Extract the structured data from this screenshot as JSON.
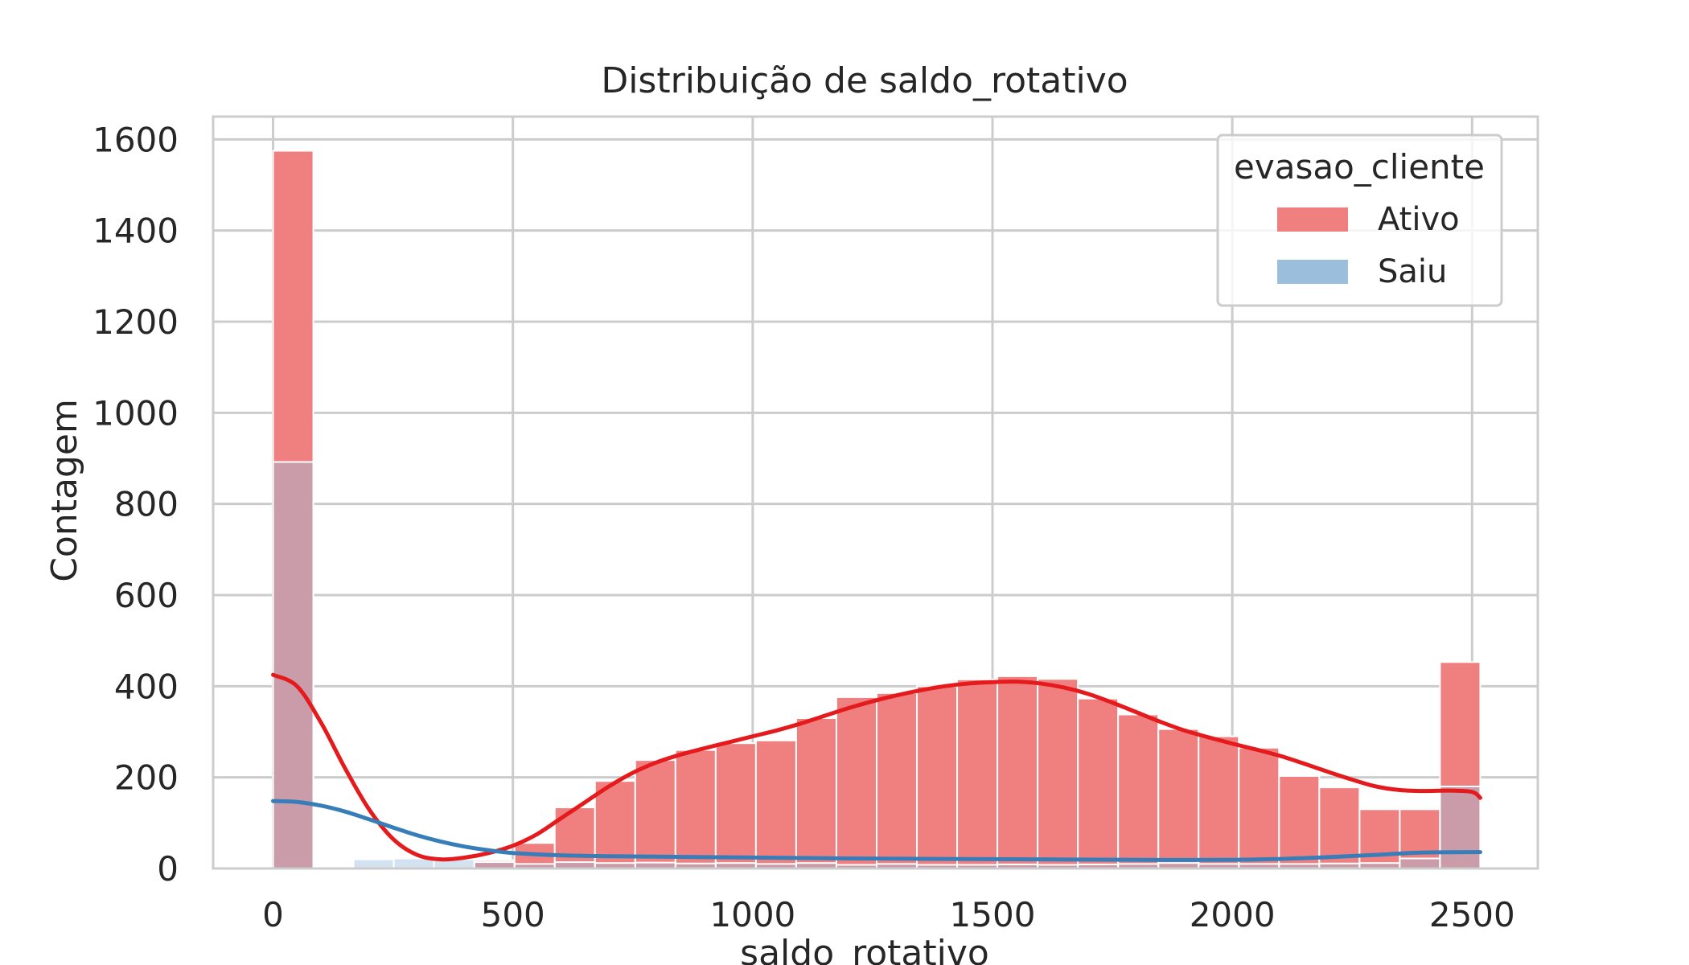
{
  "chart_data": {
    "type": "bar",
    "title": "Distribuição de saldo_rotativo",
    "xlabel": "saldo_rotativo",
    "ylabel": "Contagem",
    "xlim": [
      -125,
      2637
    ],
    "ylim": [
      0,
      1650
    ],
    "xticks": [
      0,
      500,
      1000,
      1500,
      2000,
      2500
    ],
    "yticks": [
      0,
      200,
      400,
      600,
      800,
      1000,
      1200,
      1400,
      1600
    ],
    "grid": true,
    "legend": {
      "title": "evasao_cliente",
      "position": "upper right"
    },
    "bin_edges": [
      0,
      83.9,
      167.8,
      251.7,
      335.6,
      419.5,
      503.4,
      587.3,
      671.2,
      755.1,
      839,
      922.9,
      1006.8,
      1090.7,
      1174.6,
      1258.5,
      1342.4,
      1426.3,
      1510.2,
      1594.1,
      1678,
      1761.9,
      1845.8,
      1929.7,
      2013.6,
      2097.5,
      2181.4,
      2265.3,
      2349.2,
      2433.1,
      2517
    ],
    "series": [
      {
        "name": "Ativo",
        "color": "#f08080",
        "kde_color": "#e41a1c",
        "counts": [
          1575,
          0,
          0,
          0,
          0,
          18,
          56,
          134,
          192,
          238,
          260,
          275,
          281,
          330,
          376,
          385,
          400,
          415,
          422,
          416,
          373,
          338,
          306,
          290,
          265,
          203,
          178,
          130,
          130,
          453
        ],
        "kde": [
          [
            0,
            425
          ],
          [
            50,
            400
          ],
          [
            100,
            320
          ],
          [
            150,
            220
          ],
          [
            200,
            130
          ],
          [
            250,
            65
          ],
          [
            300,
            30
          ],
          [
            350,
            20
          ],
          [
            400,
            24
          ],
          [
            450,
            34
          ],
          [
            500,
            50
          ],
          [
            550,
            75
          ],
          [
            600,
            110
          ],
          [
            650,
            145
          ],
          [
            700,
            180
          ],
          [
            750,
            210
          ],
          [
            800,
            233
          ],
          [
            850,
            250
          ],
          [
            900,
            264
          ],
          [
            950,
            277
          ],
          [
            1000,
            290
          ],
          [
            1050,
            303
          ],
          [
            1100,
            318
          ],
          [
            1150,
            335
          ],
          [
            1200,
            352
          ],
          [
            1250,
            367
          ],
          [
            1300,
            380
          ],
          [
            1350,
            391
          ],
          [
            1400,
            400
          ],
          [
            1450,
            406
          ],
          [
            1500,
            409
          ],
          [
            1550,
            410
          ],
          [
            1600,
            406
          ],
          [
            1650,
            397
          ],
          [
            1700,
            383
          ],
          [
            1750,
            364
          ],
          [
            1800,
            343
          ],
          [
            1850,
            322
          ],
          [
            1900,
            303
          ],
          [
            1950,
            288
          ],
          [
            2000,
            274
          ],
          [
            2050,
            261
          ],
          [
            2100,
            247
          ],
          [
            2150,
            230
          ],
          [
            2200,
            212
          ],
          [
            2250,
            195
          ],
          [
            2300,
            180
          ],
          [
            2350,
            172
          ],
          [
            2400,
            170
          ],
          [
            2450,
            171
          ],
          [
            2500,
            168
          ],
          [
            2517,
            155
          ]
        ]
      },
      {
        "name": "Saiu",
        "color": "#9bbedd",
        "kde_color": "#377eb8",
        "counts": [
          892,
          0,
          20,
          22,
          20,
          14,
          10,
          14,
          12,
          13,
          11,
          12,
          10,
          12,
          8,
          10,
          8,
          8,
          9,
          8,
          9,
          10,
          12,
          10,
          10,
          10,
          11,
          12,
          22,
          180
        ],
        "kde": [
          [
            0,
            148
          ],
          [
            50,
            146
          ],
          [
            100,
            138
          ],
          [
            150,
            125
          ],
          [
            200,
            108
          ],
          [
            250,
            90
          ],
          [
            300,
            73
          ],
          [
            350,
            59
          ],
          [
            400,
            48
          ],
          [
            450,
            40
          ],
          [
            500,
            34
          ],
          [
            600,
            29
          ],
          [
            700,
            27
          ],
          [
            800,
            26
          ],
          [
            1000,
            24
          ],
          [
            1200,
            22
          ],
          [
            1400,
            21
          ],
          [
            1600,
            20
          ],
          [
            1800,
            19
          ],
          [
            2000,
            19
          ],
          [
            2100,
            21
          ],
          [
            2200,
            25
          ],
          [
            2300,
            30
          ],
          [
            2400,
            35
          ],
          [
            2517,
            36
          ]
        ]
      }
    ]
  }
}
